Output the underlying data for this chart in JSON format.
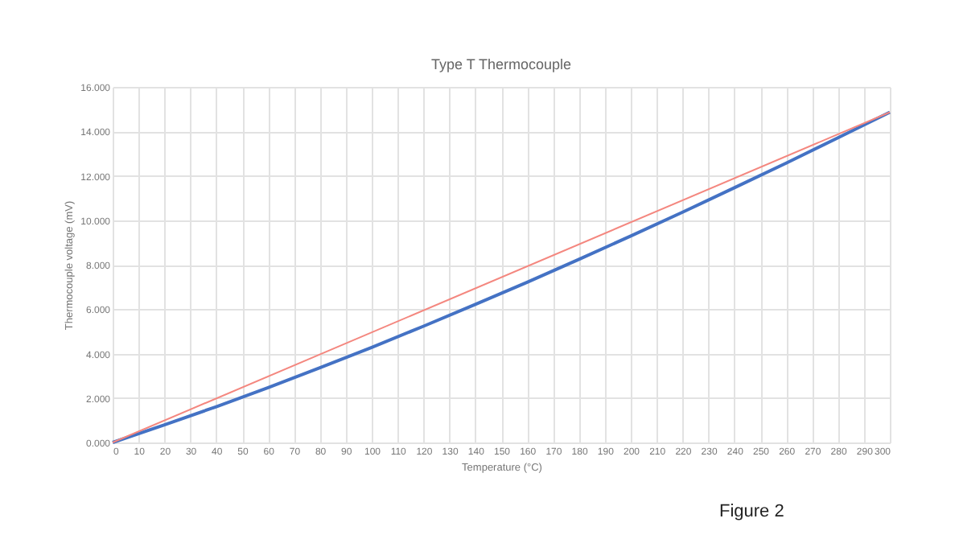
{
  "chart_data": {
    "type": "line",
    "title": "Type T Thermocouple",
    "xlabel": "Temperature (°C)",
    "ylabel": "Thermocouple voltage (mV)",
    "annotations": [
      "Figure 2"
    ],
    "series": [
      {
        "color": "#4472c4",
        "x": [
          0,
          20,
          40,
          60,
          80,
          100,
          120,
          140,
          160,
          180,
          200,
          220,
          240,
          260,
          280,
          300
        ],
        "values": [
          0,
          0.79,
          1.61,
          2.47,
          3.36,
          4.28,
          5.23,
          6.21,
          7.21,
          8.24,
          9.29,
          10.36,
          11.46,
          12.57,
          13.71,
          14.86
        ]
      },
      {
        "color": "#f4877f",
        "x": [
          0,
          300
        ],
        "values": [
          0,
          14.86
        ]
      }
    ],
    "xlim": [
      0,
      300
    ],
    "xticks": [
      0,
      10,
      20,
      30,
      40,
      50,
      60,
      70,
      80,
      90,
      100,
      110,
      120,
      130,
      140,
      150,
      160,
      170,
      180,
      190,
      200,
      210,
      220,
      230,
      240,
      250,
      260,
      270,
      280,
      290,
      300
    ],
    "ylim": [
      0,
      16
    ],
    "yticks": [
      {
        "value": 0,
        "label": "0.000"
      },
      {
        "value": 2,
        "label": "2.000"
      },
      {
        "value": 4,
        "label": "4.000"
      },
      {
        "value": 6,
        "label": "6.000"
      },
      {
        "value": 8,
        "label": "8.000"
      },
      {
        "value": 10,
        "label": "10.000"
      },
      {
        "value": 12,
        "label": "12.000"
      },
      {
        "value": 14,
        "label": "14.000"
      },
      {
        "value": 16,
        "label": "16.000"
      }
    ],
    "grid": true,
    "legend": false,
    "marker": "none",
    "line_style": "solid"
  }
}
